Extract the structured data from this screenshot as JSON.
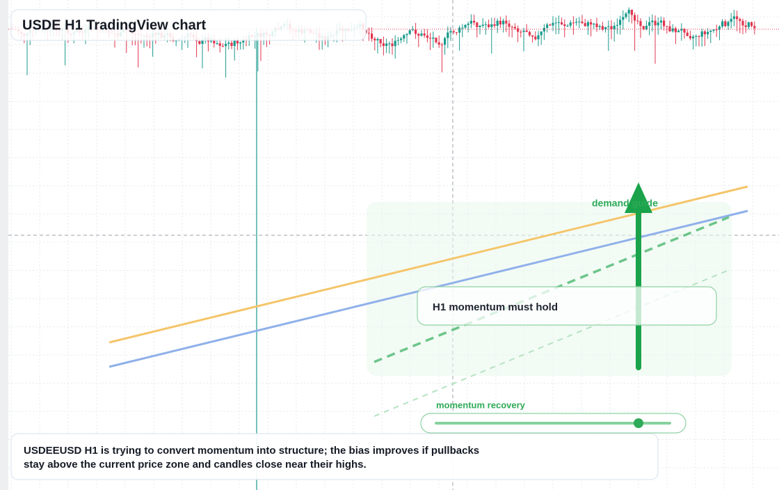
{
  "header": {
    "title": "USDE H1 TradingView chart"
  },
  "annotations": {
    "zone_label": "demand guide",
    "callout": "H1 momentum must hold",
    "slider_label": "momentum recovery"
  },
  "footer": {
    "lines": [
      "USDEEUSD H1 is trying to convert momentum into structure; the bias improves if pullbacks",
      "stay above the current price zone and candles close near their highs."
    ]
  }
}
